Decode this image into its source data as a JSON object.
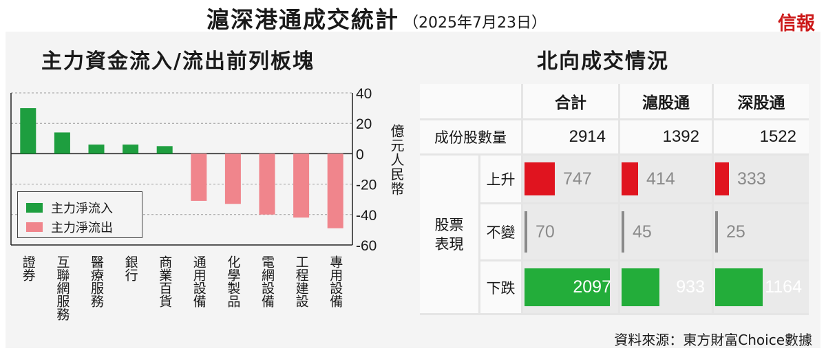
{
  "header": {
    "title": "滬深港通成交統計",
    "date": "（2025年7月23日）",
    "brand": "信報"
  },
  "chart_data": {
    "type": "bar",
    "title": "主力資金流入/流出前列板塊",
    "categories": [
      "證券",
      "互聯網服務",
      "醫療服務",
      "銀行",
      "商業百貨",
      "通用設備",
      "化學製品",
      "電網設備",
      "工程建設",
      "專用設備"
    ],
    "values": [
      30,
      14,
      6,
      6,
      5,
      -31,
      -33,
      -40,
      -42,
      -49
    ],
    "ylabel": "億元人民幣",
    "ylim": [
      -60,
      40
    ],
    "yticks": [
      40,
      20,
      0,
      -20,
      -40,
      -60
    ],
    "grid": true,
    "legend": [
      {
        "name": "主力淨流入",
        "color": "#1e9e3f"
      },
      {
        "name": "主力淨流出",
        "color": "#f0858c"
      }
    ],
    "legend_position": "bottom-left"
  },
  "table": {
    "title": "北向成交情況",
    "columns": [
      "合計",
      "滬股通",
      "深股通"
    ],
    "count_label": "成份股數量",
    "counts": [
      "2914",
      "1392",
      "1522"
    ],
    "group_label": "股票表現",
    "rows": [
      {
        "label": "上升",
        "values": [
          747,
          414,
          333
        ],
        "color": "#e0141f"
      },
      {
        "label": "不變",
        "values": [
          70,
          45,
          25
        ],
        "color": "#8a8a8a"
      },
      {
        "label": "下跌",
        "values": [
          2097,
          933,
          1164
        ],
        "color": "#23ad3a"
      }
    ]
  },
  "source": "資料來源：東方財富Choice數據"
}
